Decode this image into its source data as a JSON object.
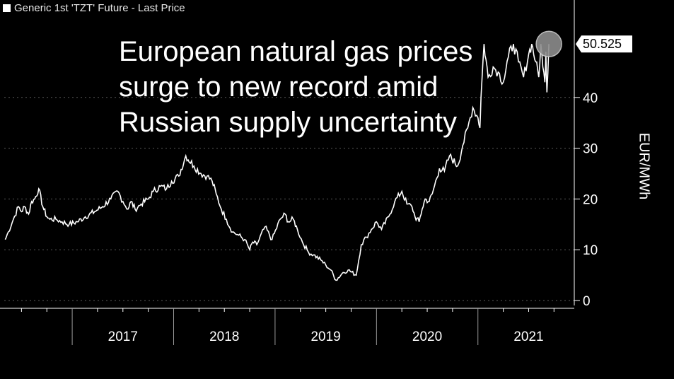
{
  "legend": {
    "text": "Generic 1st 'TZT' Future - Last Price"
  },
  "headline": [
    "European natural gas prices",
    "surge to new record amid",
    "Russian supply uncertainty"
  ],
  "colors": {
    "background": "#000000",
    "line": "#ffffff",
    "marker": "#8c8c8c",
    "grid": "#5a5a5a"
  },
  "chart_data": {
    "type": "line",
    "title": "European natural gas prices surge to new record amid Russian supply uncertainty",
    "xlabel": "",
    "ylabel": "EUR/MWh",
    "ylim": [
      0,
      55
    ],
    "xlim": [
      2016.33,
      2021.95
    ],
    "yticks": [
      0,
      10,
      20,
      30,
      40
    ],
    "xtick_labels": [
      "2017",
      "2018",
      "2019",
      "2020",
      "2021"
    ],
    "grid": true,
    "legend_position": "top-left",
    "last_value_label": "50.525",
    "series": [
      {
        "name": "Generic 1st 'TZT' Future - Last Price",
        "x": [
          2016.34,
          2016.37,
          2016.42,
          2016.47,
          2016.5,
          2016.53,
          2016.57,
          2016.6,
          2016.63,
          2016.67,
          2016.71,
          2016.75,
          2016.78,
          2016.84,
          2016.9,
          2016.97,
          2017.05,
          2017.13,
          2017.22,
          2017.3,
          2017.38,
          2017.45,
          2017.5,
          2017.55,
          2017.58,
          2017.62,
          2017.68,
          2017.75,
          2017.8,
          2017.87,
          2017.93,
          2017.98,
          2018.05,
          2018.12,
          2018.2,
          2018.27,
          2018.33,
          2018.38,
          2018.42,
          2018.47,
          2018.52,
          2018.58,
          2018.63,
          2018.7,
          2018.75,
          2018.78,
          2018.82,
          2018.9,
          2018.97,
          2019.05,
          2019.1,
          2019.13,
          2019.18,
          2019.22,
          2019.27,
          2019.33,
          2019.38,
          2019.45,
          2019.5,
          2019.55,
          2019.6,
          2019.67,
          2019.72,
          2019.8,
          2019.85,
          2019.9,
          2019.95,
          2020.0,
          2020.05,
          2020.12,
          2020.18,
          2020.25,
          2020.3,
          2020.35,
          2020.38,
          2020.42,
          2020.45,
          2020.48,
          2020.52,
          2020.55,
          2020.62,
          2020.67,
          2020.72,
          2020.8,
          2020.85,
          2020.9,
          2020.95,
          2021.0,
          2021.02,
          2021.03,
          2021.06,
          2021.1,
          2021.15,
          2021.2,
          2021.25,
          2021.3,
          2021.35,
          2021.4,
          2021.45,
          2021.5,
          2021.53,
          2021.57,
          2021.6,
          2021.62,
          2021.64,
          2021.66,
          2021.67,
          2021.68,
          2021.7
        ],
        "values": [
          12.0,
          13.5,
          16.0,
          18.5,
          17.5,
          18.5,
          17.0,
          19.5,
          20.0,
          22.0,
          18.5,
          16.5,
          16.0,
          16.0,
          15.5,
          15.0,
          15.5,
          16.5,
          17.5,
          18.5,
          20.0,
          21.5,
          19.5,
          18.0,
          19.5,
          18.0,
          19.0,
          20.0,
          21.5,
          22.5,
          22.0,
          23.5,
          24.5,
          28.5,
          26.5,
          25.0,
          24.5,
          23.5,
          21.0,
          18.0,
          16.0,
          13.5,
          13.0,
          12.0,
          10.0,
          11.5,
          11.0,
          14.5,
          12.0,
          16.0,
          17.0,
          15.5,
          16.0,
          14.0,
          11.5,
          9.5,
          9.0,
          8.0,
          7.0,
          6.0,
          4.0,
          5.5,
          6.0,
          5.0,
          11.0,
          12.5,
          14.0,
          15.5,
          14.0,
          16.5,
          19.5,
          21.5,
          19.0,
          18.5,
          16.5,
          15.5,
          18.0,
          20.0,
          19.5,
          21.0,
          26.0,
          25.5,
          28.5,
          26.5,
          30.5,
          34.0,
          38.0,
          36.0,
          34.0,
          40.0,
          50.525,
          44.0,
          46.0,
          45.0,
          43.0,
          48.0,
          50.525,
          47.0,
          44.0,
          48.5,
          50.525,
          47.0,
          44.0,
          50.525,
          46.0,
          43.0,
          49.0,
          41.0,
          50.525
        ]
      }
    ]
  }
}
